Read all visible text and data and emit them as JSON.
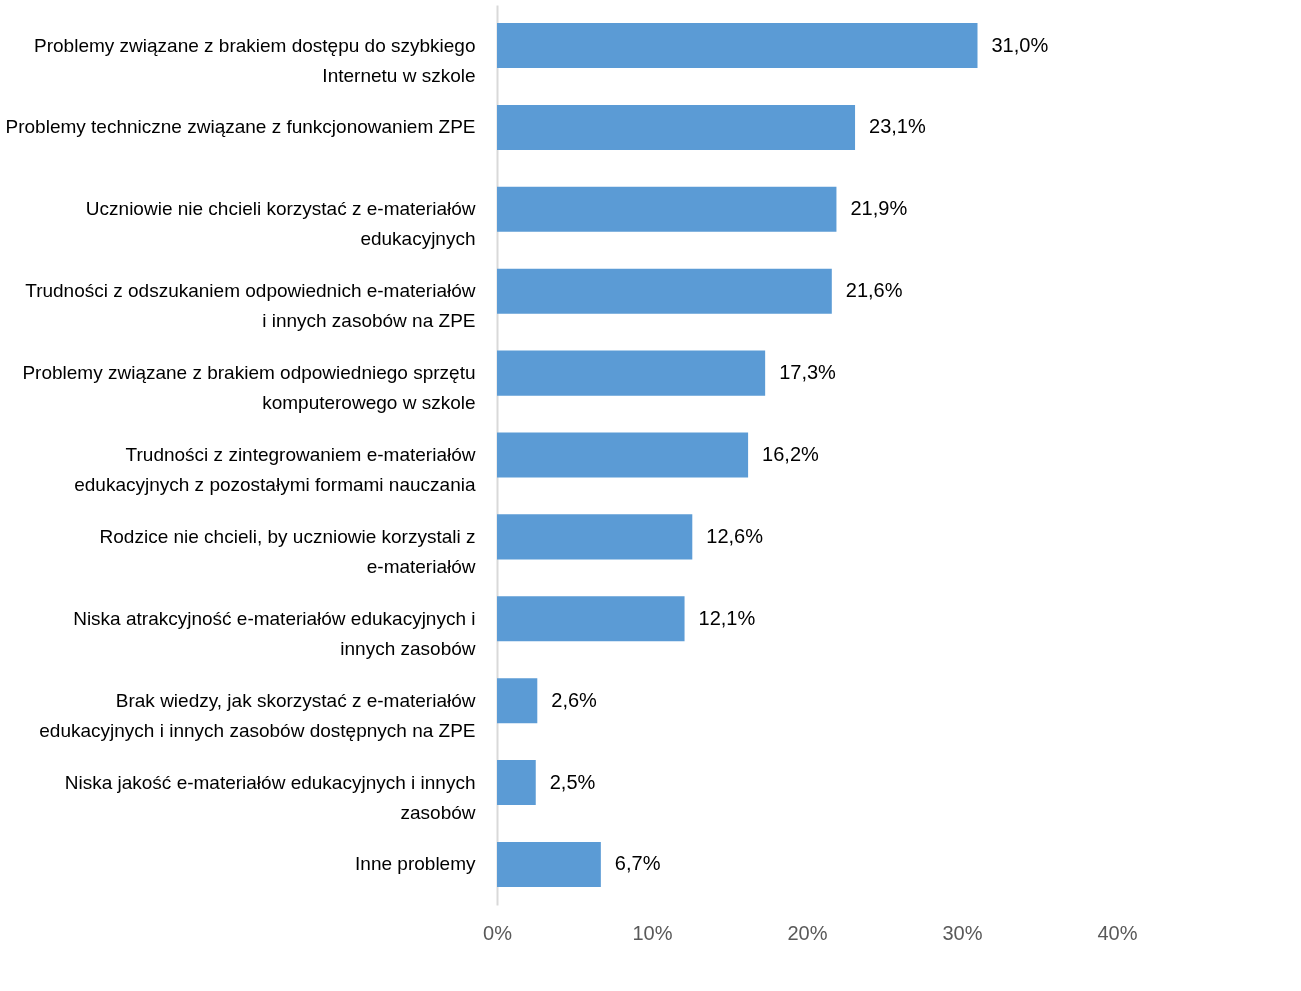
{
  "chart_data": {
    "type": "bar",
    "orientation": "horizontal",
    "categories": [
      "Problemy związane z brakiem dostępu do szybkiego Internetu w szkole",
      "Problemy techniczne związane z funkcjonowaniem ZPE",
      "Uczniowie nie chcieli korzystać z e-materiałów edukacyjnych",
      "Trudności z odszukaniem odpowiednich e-materiałów i innych zasobów na ZPE",
      "Problemy związane z brakiem odpowiedniego sprzętu komputerowego w szkole",
      "Trudności z zintegrowaniem e-materiałów edukacyjnych z pozostałymi formami nauczania",
      "Rodzice nie chcieli, by uczniowie korzystali z e-materiałów",
      "Niska atrakcyjność e-materiałów edukacyjnych i innych zasobów",
      "Brak wiedzy, jak skorzystać z e-materiałów edukacyjnych i innych zasobów dostępnych na ZPE",
      "Niska jakość e-materiałów edukacyjnych i innych zasobów",
      "Inne problemy"
    ],
    "values": [
      31.0,
      23.1,
      21.9,
      21.6,
      17.3,
      16.2,
      12.6,
      12.1,
      2.6,
      2.5,
      6.7
    ],
    "value_labels": [
      "31,0%",
      "23,1%",
      "21,9%",
      "21,6%",
      "17,3%",
      "16,2%",
      "12,6%",
      "12,1%",
      "2,6%",
      "2,5%",
      "6,7%"
    ],
    "color": "#5b9bd5",
    "xlim": [
      0,
      40
    ],
    "xticks": [
      {
        "value": 0,
        "label": "0%"
      },
      {
        "value": 10,
        "label": "10%"
      },
      {
        "value": 20,
        "label": "20%"
      },
      {
        "value": 30,
        "label": "30%"
      },
      {
        "value": 40,
        "label": "40%"
      }
    ],
    "grid": false
  }
}
